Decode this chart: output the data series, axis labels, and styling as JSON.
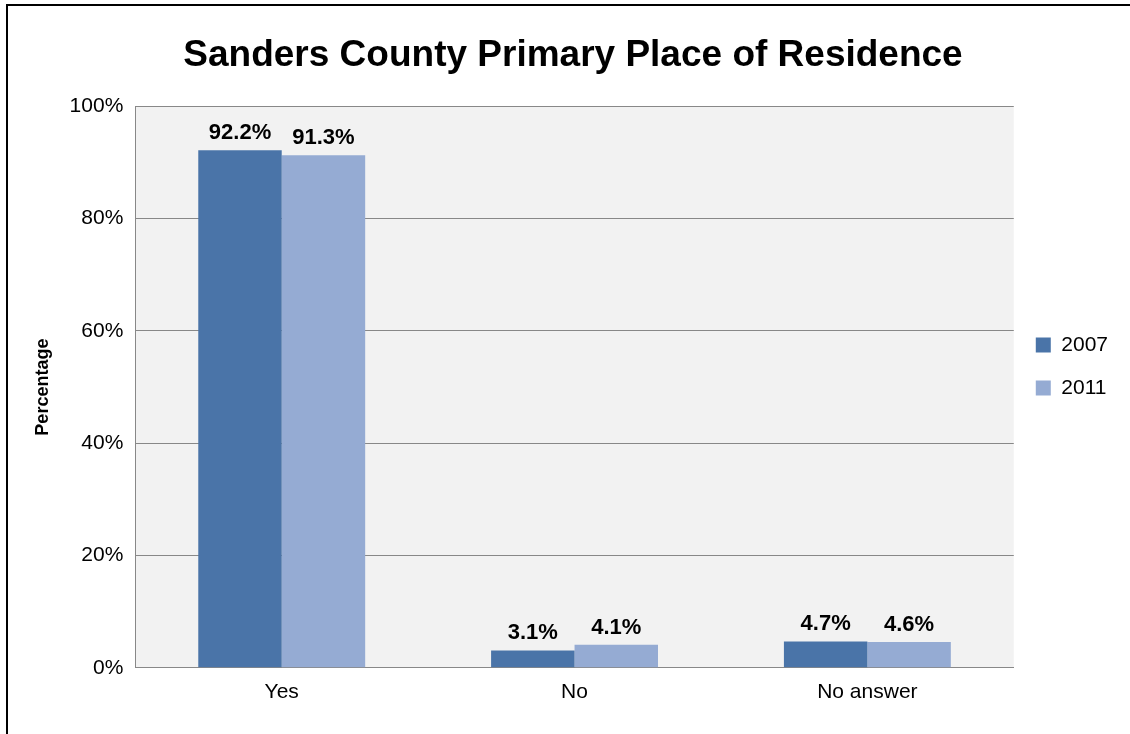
{
  "chart_data": {
    "type": "bar",
    "title": "Sanders County Primary Place of Residence",
    "ylabel": "Percentage",
    "categories": [
      "Yes",
      "No",
      "No answer"
    ],
    "series": [
      {
        "name": "2007",
        "color": "#4a74a8",
        "values": [
          92.2,
          3.1,
          4.7
        ],
        "value_labels": [
          "92.2%",
          "3.1%",
          "4.7%"
        ]
      },
      {
        "name": "2011",
        "color": "#95abd3",
        "values": [
          91.3,
          4.1,
          4.6
        ],
        "value_labels": [
          "91.3%",
          "4.1%",
          "4.6%"
        ]
      }
    ],
    "ylim": [
      0,
      100
    ],
    "yticks": [
      {
        "value": 0,
        "label": "0%"
      },
      {
        "value": 20,
        "label": "20%"
      },
      {
        "value": 40,
        "label": "40%"
      },
      {
        "value": 60,
        "label": "60%"
      },
      {
        "value": 80,
        "label": "80%"
      },
      {
        "value": 100,
        "label": "100%"
      }
    ],
    "grid": "y",
    "legend": "right"
  }
}
